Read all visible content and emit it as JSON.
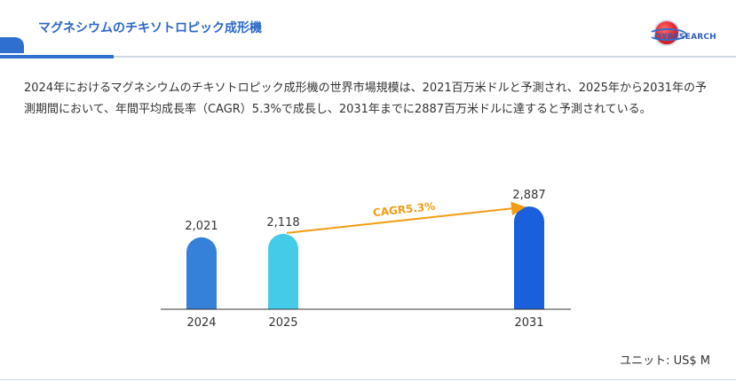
{
  "header": {
    "title": "マグネシウムのチキソトロピック成形機",
    "logo_text": "QYRESEARCH",
    "accent_color": "#2f6fd0"
  },
  "summary": "2024年におけるマグネシウムのチキソトロピック成形機の世界市場規模は、2021百万米ドルと予測され、2025年から2031年の予測期間において、年間平均成長率（CAGR）5.3%で成長し、2031年までに2887百万米ドルに達すると予測されている。",
  "unit_label": "ユニット: US$ M",
  "chart_data": {
    "type": "bar",
    "categories": [
      "2024",
      "2025",
      "2031"
    ],
    "values": [
      2021,
      2118,
      2887
    ],
    "value_labels": [
      "2,021",
      "2,118",
      "2,887"
    ],
    "bar_colors": [
      "#3580d8",
      "#43cbe8",
      "#1a5fdc"
    ],
    "annotation": {
      "text": "CAGR5.3%",
      "from_category": "2025",
      "to_category": "2031",
      "color": "#f39c12"
    },
    "ylim": [
      0,
      2887
    ],
    "grid": false,
    "legend": "none"
  }
}
